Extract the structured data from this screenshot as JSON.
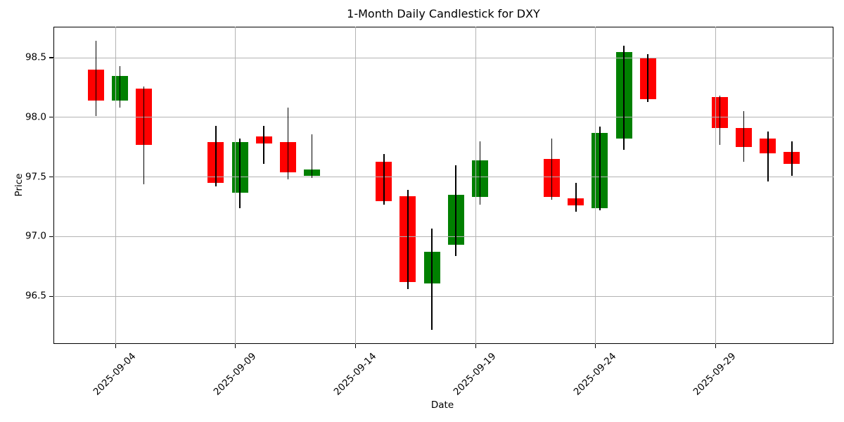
{
  "chart_data": {
    "type": "candlestick",
    "title": "1-Month Daily Candlestick for DXY",
    "xlabel": "Date",
    "ylabel": "Price",
    "x_tick_labels": [
      "2025-09-04",
      "2025-09-09",
      "2025-09-14",
      "2025-09-19",
      "2025-09-24",
      "2025-09-29"
    ],
    "y_tick_labels": [
      "96.5",
      "97.0",
      "97.5",
      "98.0",
      "98.5"
    ],
    "ylim": [
      96.1,
      98.76
    ],
    "grid": true,
    "legend": "none",
    "colors": {
      "up": "#008000",
      "down": "#ff0000",
      "wick": "#000000",
      "grid": "#b3b3b3",
      "spine": "#000000",
      "background": "#ffffff"
    },
    "series": [
      {
        "date": "2025-09-03",
        "open": 98.4,
        "high": 98.64,
        "low": 98.01,
        "close": 98.14
      },
      {
        "date": "2025-09-04",
        "open": 98.14,
        "high": 98.43,
        "low": 98.08,
        "close": 98.35
      },
      {
        "date": "2025-09-05",
        "open": 98.24,
        "high": 98.26,
        "low": 97.44,
        "close": 97.77
      },
      {
        "date": "2025-09-08",
        "open": 97.79,
        "high": 97.93,
        "low": 97.42,
        "close": 97.45
      },
      {
        "date": "2025-09-09",
        "open": 97.37,
        "high": 97.82,
        "low": 97.24,
        "close": 97.79
      },
      {
        "date": "2025-09-10",
        "open": 97.84,
        "high": 97.93,
        "low": 97.61,
        "close": 97.78
      },
      {
        "date": "2025-09-11",
        "open": 97.79,
        "high": 98.08,
        "low": 97.48,
        "close": 97.54
      },
      {
        "date": "2025-09-12",
        "open": 97.51,
        "high": 97.86,
        "low": 97.49,
        "close": 97.56
      },
      {
        "date": "2025-09-15",
        "open": 97.63,
        "high": 97.69,
        "low": 97.27,
        "close": 97.3
      },
      {
        "date": "2025-09-16",
        "open": 97.34,
        "high": 97.39,
        "low": 96.56,
        "close": 96.62
      },
      {
        "date": "2025-09-17",
        "open": 96.61,
        "high": 97.07,
        "low": 96.22,
        "close": 96.87
      },
      {
        "date": "2025-09-18",
        "open": 96.93,
        "high": 97.6,
        "low": 96.84,
        "close": 97.35
      },
      {
        "date": "2025-09-19",
        "open": 97.33,
        "high": 97.8,
        "low": 97.27,
        "close": 97.64
      },
      {
        "date": "2025-09-22",
        "open": 97.65,
        "high": 97.82,
        "low": 97.31,
        "close": 97.33
      },
      {
        "date": "2025-09-23",
        "open": 97.32,
        "high": 97.45,
        "low": 97.21,
        "close": 97.26
      },
      {
        "date": "2025-09-24",
        "open": 97.24,
        "high": 97.92,
        "low": 97.22,
        "close": 97.87
      },
      {
        "date": "2025-09-25",
        "open": 97.82,
        "high": 98.6,
        "low": 97.73,
        "close": 98.55
      },
      {
        "date": "2025-09-26",
        "open": 98.5,
        "high": 98.53,
        "low": 98.13,
        "close": 98.15
      },
      {
        "date": "2025-09-29",
        "open": 98.17,
        "high": 98.18,
        "low": 97.77,
        "close": 97.91
      },
      {
        "date": "2025-09-30",
        "open": 97.91,
        "high": 98.05,
        "low": 97.63,
        "close": 97.75
      },
      {
        "date": "2025-10-01",
        "open": 97.82,
        "high": 97.88,
        "low": 97.46,
        "close": 97.7
      },
      {
        "date": "2025-10-02",
        "open": 97.71,
        "high": 97.8,
        "low": 97.51,
        "close": 97.61
      }
    ]
  }
}
